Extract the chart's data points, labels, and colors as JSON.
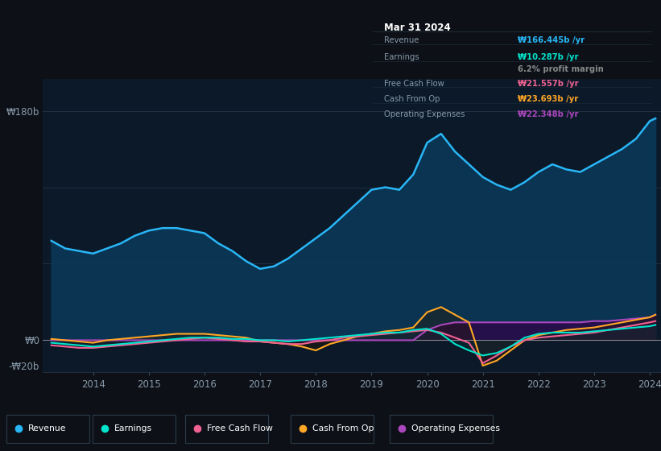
{
  "background_color": "#0d1117",
  "chart_bg": "#0b1929",
  "title": "Mar 31 2024",
  "ylabel_top": "₩180b",
  "ylabel_zero": "₩0",
  "ylabel_bottom": "-₩20b",
  "years": [
    2013.25,
    2013.5,
    2013.75,
    2014.0,
    2014.25,
    2014.5,
    2014.75,
    2015.0,
    2015.25,
    2015.5,
    2015.75,
    2016.0,
    2016.25,
    2016.5,
    2016.75,
    2017.0,
    2017.25,
    2017.5,
    2017.75,
    2018.0,
    2018.25,
    2018.5,
    2018.75,
    2019.0,
    2019.25,
    2019.5,
    2019.75,
    2020.0,
    2020.25,
    2020.5,
    2020.75,
    2021.0,
    2021.25,
    2021.5,
    2021.75,
    2022.0,
    2022.25,
    2022.5,
    2022.75,
    2023.0,
    2023.25,
    2023.5,
    2023.75,
    2024.0,
    2024.1
  ],
  "revenue": [
    78,
    72,
    70,
    68,
    72,
    76,
    82,
    86,
    88,
    88,
    86,
    84,
    76,
    70,
    62,
    56,
    58,
    64,
    72,
    80,
    88,
    98,
    108,
    118,
    120,
    118,
    130,
    155,
    162,
    148,
    138,
    128,
    122,
    118,
    124,
    132,
    138,
    134,
    132,
    138,
    144,
    150,
    158,
    172,
    174
  ],
  "earnings": [
    -2,
    -3,
    -4,
    -5,
    -4,
    -3,
    -2,
    -1,
    0,
    1,
    2,
    2,
    2,
    1,
    1,
    0,
    0,
    -1,
    0,
    1,
    2,
    3,
    4,
    5,
    6,
    6,
    8,
    9,
    5,
    -3,
    -8,
    -12,
    -10,
    -5,
    2,
    5,
    6,
    6,
    6,
    7,
    8,
    9,
    10,
    11,
    12
  ],
  "free_cash_flow": [
    -4,
    -5,
    -6,
    -6,
    -5,
    -4,
    -3,
    -2,
    -1,
    0,
    1,
    2,
    1,
    0,
    -1,
    -1,
    -2,
    -3,
    -3,
    -1,
    0,
    2,
    3,
    4,
    5,
    6,
    7,
    8,
    6,
    2,
    -2,
    -18,
    -12,
    -5,
    0,
    2,
    3,
    4,
    5,
    6,
    8,
    10,
    12,
    14,
    15
  ],
  "cash_from_op": [
    1,
    0,
    -1,
    -2,
    0,
    1,
    2,
    3,
    4,
    5,
    5,
    5,
    4,
    3,
    2,
    -1,
    -2,
    -3,
    -5,
    -8,
    -3,
    0,
    3,
    5,
    7,
    8,
    10,
    22,
    26,
    20,
    14,
    -20,
    -16,
    -8,
    0,
    4,
    6,
    8,
    9,
    10,
    12,
    14,
    16,
    18,
    20
  ],
  "operating_expenses": [
    0,
    0,
    0,
    0,
    0,
    0,
    0,
    0,
    0,
    0,
    0,
    0,
    0,
    0,
    0,
    0,
    0,
    0,
    0,
    0,
    0,
    0,
    0,
    0,
    0,
    0,
    0,
    8,
    12,
    14,
    14,
    14,
    14,
    14,
    14,
    14,
    14,
    14,
    14,
    15,
    15,
    16,
    17,
    18,
    20
  ],
  "x_ticks": [
    2014,
    2015,
    2016,
    2017,
    2018,
    2019,
    2020,
    2021,
    2022,
    2023,
    2024
  ],
  "revenue_color": "#29b6f6",
  "revenue_fill": "#0a3a5a",
  "earnings_color": "#00e5cc",
  "earnings_fill": "#003a3a",
  "fcf_color": "#f06292",
  "fcf_fill": "#3a0a2a",
  "cashop_color": "#ffa726",
  "cashop_fill": "#2a1a00",
  "opex_color": "#ab47bc",
  "opex_fill": "#2a0a4a",
  "ylim_min": -25,
  "ylim_max": 205,
  "tooltip_revenue_color": "#29b6f6",
  "tooltip_earnings_color": "#00e5cc",
  "tooltip_fcf_color": "#f06292",
  "tooltip_cashop_color": "#ffa726",
  "tooltip_opex_color": "#ab47bc",
  "tooltip_revenue": "₩166.445b /yr",
  "tooltip_earnings": "₩10.287b /yr",
  "tooltip_profit": "6.2% profit margin",
  "tooltip_fcf": "₩21.557b /yr",
  "tooltip_cashop": "₩23.693b /yr",
  "tooltip_opex": "₩22.348b /yr"
}
